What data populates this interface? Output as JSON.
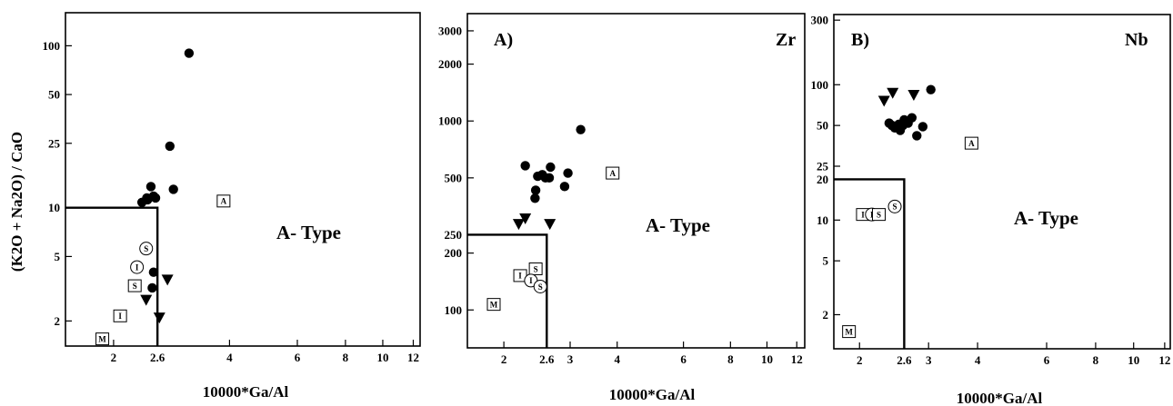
{
  "figure": {
    "panels": [
      {
        "panel_label": "",
        "element_label": "",
        "ylabel": "(K2O + Na2O) / CaO",
        "xlabel": "10000*Ga/Al"
      },
      {
        "panel_label": "A)",
        "element_label": "Zr",
        "ylabel": "",
        "xlabel": "10000*Ga/Al"
      },
      {
        "panel_label": "B)",
        "element_label": "Nb",
        "ylabel": "",
        "xlabel": "10000*Ga/Al"
      }
    ]
  },
  "chart_data": [
    {
      "type": "scatter",
      "title": "",
      "xlabel": "10000*Ga/Al",
      "ylabel": "(K2O + Na2O) / CaO",
      "xscale": "log",
      "yscale": "log",
      "xlim": [
        1.5,
        12.5
      ],
      "ylim": [
        1.4,
        160
      ],
      "xticks": [
        2,
        2.6,
        4,
        6,
        8,
        10,
        12
      ],
      "xtick_labels": [
        "2",
        "2.6",
        "4",
        "6",
        "8",
        "10",
        "12"
      ],
      "yticks": [
        2,
        5,
        10,
        25,
        50,
        100
      ],
      "ytick_labels": [
        "2",
        "5",
        "10",
        "25",
        "50",
        "100"
      ],
      "field_boundary": {
        "x": 2.6,
        "y": 10
      },
      "field_label": "A- Type",
      "series": [
        {
          "marker": "circle",
          "x": [
            3.14,
            2.8,
            2.86,
            2.5,
            2.44,
            2.37,
            2.54,
            2.45,
            2.57,
            2.54,
            2.52
          ],
          "y": [
            90,
            24,
            13,
            13.5,
            11.5,
            10.8,
            11.8,
            11.2,
            11.5,
            4,
            3.2
          ]
        },
        {
          "marker": "triangle-down",
          "x": [
            2.76,
            2.43,
            2.63
          ],
          "y": [
            3.6,
            2.7,
            2.1
          ]
        }
      ],
      "reference_points": [
        {
          "label": "A",
          "shape": "square",
          "x": 3.86,
          "y": 11
        },
        {
          "label": "S",
          "shape": "circle",
          "x": 2.43,
          "y": 5.6
        },
        {
          "label": "I",
          "shape": "circle",
          "x": 2.3,
          "y": 4.3
        },
        {
          "label": "S",
          "shape": "square",
          "x": 2.27,
          "y": 3.3
        },
        {
          "label": "I",
          "shape": "square",
          "x": 2.08,
          "y": 2.15
        },
        {
          "label": "M",
          "shape": "square",
          "x": 1.87,
          "y": 1.55
        }
      ]
    },
    {
      "type": "scatter",
      "title": "",
      "xlabel": "10000*Ga/Al",
      "ylabel": "Zr",
      "xscale": "log",
      "yscale": "log",
      "xlim": [
        1.6,
        12.6
      ],
      "ylim": [
        63,
        3700
      ],
      "xticks": [
        2,
        2.6,
        3,
        4,
        6,
        8,
        10,
        12
      ],
      "xtick_labels": [
        "2",
        "2.6",
        "3",
        "4",
        "6",
        "8",
        "10",
        "12"
      ],
      "yticks": [
        100,
        200,
        250,
        500,
        1000,
        2000,
        3000
      ],
      "ytick_labels": [
        "100",
        "200",
        "250",
        "500",
        "1000",
        "2000",
        "3000"
      ],
      "field_boundary": {
        "x": 2.6,
        "y": 250
      },
      "field_label": "A- Type",
      "series": [
        {
          "marker": "circle",
          "x": [
            3.2,
            2.28,
            2.46,
            2.53,
            2.58,
            2.66,
            2.64,
            2.96,
            2.9,
            2.43,
            2.42
          ],
          "y": [
            900,
            580,
            510,
            520,
            500,
            570,
            500,
            530,
            450,
            430,
            390
          ]
        },
        {
          "marker": "triangle-down",
          "x": [
            2.28,
            2.19,
            2.65
          ],
          "y": [
            305,
            285,
            285
          ]
        }
      ],
      "reference_points": [
        {
          "label": "A",
          "shape": "square",
          "x": 3.89,
          "y": 530
        },
        {
          "label": "S",
          "shape": "square",
          "x": 2.43,
          "y": 165
        },
        {
          "label": "I",
          "shape": "square",
          "x": 2.21,
          "y": 152
        },
        {
          "label": "I",
          "shape": "circle",
          "x": 2.36,
          "y": 143
        },
        {
          "label": "S",
          "shape": "circle",
          "x": 2.5,
          "y": 133
        },
        {
          "label": "M",
          "shape": "square",
          "x": 1.88,
          "y": 107
        }
      ]
    },
    {
      "type": "scatter",
      "title": "",
      "xlabel": "10000*Ga/Al",
      "ylabel": "Nb",
      "xscale": "log",
      "yscale": "log",
      "xlim": [
        1.72,
        12.4
      ],
      "ylim": [
        1.12,
        330
      ],
      "xticks": [
        2,
        2.6,
        3,
        4,
        6,
        8,
        10,
        12
      ],
      "xtick_labels": [
        "2",
        "2.6",
        "3",
        "4",
        "6",
        "8",
        "10",
        "12"
      ],
      "yticks": [
        2,
        5,
        10,
        20,
        25,
        50,
        100,
        300
      ],
      "ytick_labels": [
        "2",
        "5",
        "10",
        "20",
        "25",
        "50",
        "100",
        "300"
      ],
      "field_boundary": {
        "x": 2.6,
        "y": 20
      },
      "field_label": "A- Type",
      "series": [
        {
          "marker": "circle",
          "x": [
            3.04,
            2.38,
            2.46,
            2.52,
            2.58,
            2.6,
            2.66,
            2.72,
            2.9,
            2.8,
            2.54,
            2.42
          ],
          "y": [
            92,
            52,
            48,
            51,
            50,
            55,
            52,
            57,
            49,
            42,
            46,
            50
          ]
        },
        {
          "marker": "triangle-down",
          "x": [
            2.43,
            2.75,
            2.31
          ],
          "y": [
            87,
            84,
            76
          ]
        }
      ],
      "reference_points": [
        {
          "label": "A",
          "shape": "square",
          "x": 3.86,
          "y": 37
        },
        {
          "label": "S",
          "shape": "circle",
          "x": 2.46,
          "y": 12.6
        },
        {
          "label": "I",
          "shape": "square",
          "x": 2.04,
          "y": 11
        },
        {
          "label": "I",
          "shape": "circle",
          "x": 2.15,
          "y": 11
        },
        {
          "label": "S",
          "shape": "square",
          "x": 2.24,
          "y": 11
        },
        {
          "label": "M",
          "shape": "square",
          "x": 1.88,
          "y": 1.5
        }
      ]
    }
  ]
}
